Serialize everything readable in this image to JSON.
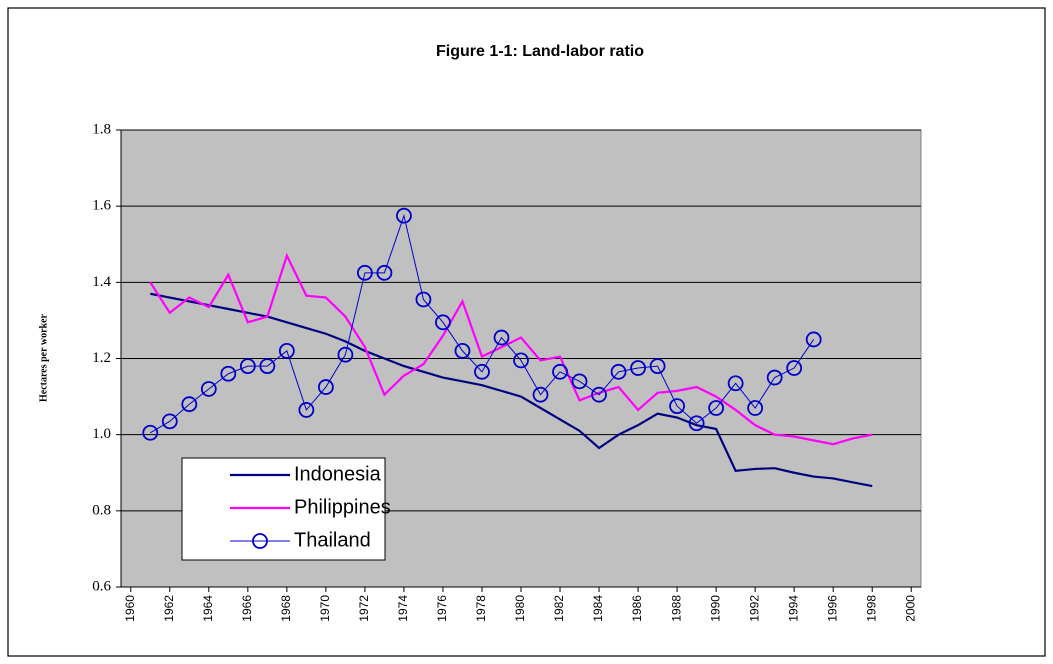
{
  "chart_data": {
    "type": "line",
    "title": "Figure 1-1: Land-labor ratio",
    "y_label": "Hectares per worker",
    "x": [
      1961,
      1962,
      1963,
      1964,
      1965,
      1966,
      1967,
      1968,
      1969,
      1970,
      1971,
      1972,
      1973,
      1974,
      1975,
      1976,
      1977,
      1978,
      1979,
      1980,
      1981,
      1982,
      1983,
      1984,
      1985,
      1986,
      1987,
      1988,
      1989,
      1990,
      1991,
      1992,
      1993,
      1994,
      1995,
      1996,
      1997,
      1998
    ],
    "series": [
      {
        "name": "Indonesia",
        "color": "#000080",
        "values": [
          1.37,
          1.36,
          1.35,
          1.34,
          1.33,
          1.32,
          1.31,
          1.295,
          1.28,
          1.265,
          1.245,
          1.22,
          1.2,
          1.18,
          1.165,
          1.15,
          1.14,
          1.13,
          1.115,
          1.1,
          1.07,
          1.04,
          1.01,
          0.965,
          1.0,
          1.025,
          1.055,
          1.045,
          1.025,
          1.015,
          0.905,
          0.91,
          0.912,
          0.9,
          0.89,
          0.885,
          0.875,
          0.865
        ]
      },
      {
        "name": "Philippines",
        "color": "#ff00ff",
        "values": [
          1.4,
          1.32,
          1.36,
          1.335,
          1.42,
          1.295,
          1.31,
          1.47,
          1.365,
          1.36,
          1.31,
          1.23,
          1.105,
          1.155,
          1.185,
          1.26,
          1.35,
          1.205,
          1.23,
          1.255,
          1.195,
          1.205,
          1.09,
          1.11,
          1.125,
          1.065,
          1.11,
          1.115,
          1.125,
          1.1,
          1.065,
          1.025,
          1.0,
          0.995,
          0.985,
          0.975,
          0.99,
          1.0
        ]
      },
      {
        "name": "Thailand",
        "color": "#0000cc",
        "marker": "circle",
        "values": [
          1.005,
          1.035,
          1.08,
          1.12,
          1.16,
          1.18,
          1.18,
          1.22,
          1.065,
          1.125,
          1.21,
          1.425,
          1.425,
          1.575,
          1.355,
          1.295,
          1.22,
          1.165,
          1.255,
          1.195,
          1.105,
          1.165,
          1.14,
          1.105,
          1.165,
          1.175,
          1.18,
          1.075,
          1.03,
          1.07,
          1.135,
          1.07,
          1.15,
          1.175,
          1.25,
          null,
          null,
          null
        ]
      }
    ],
    "xlim": [
      1959.5,
      2000.5
    ],
    "xticks": [
      1960,
      1962,
      1964,
      1966,
      1968,
      1970,
      1972,
      1974,
      1976,
      1978,
      1980,
      1982,
      1984,
      1986,
      1988,
      1990,
      1992,
      1994,
      1996,
      1998,
      2000
    ],
    "ylim": [
      0.6,
      1.8
    ],
    "yticks": [
      {
        "value": 0.6,
        "label": "0.6"
      },
      {
        "value": 0.8,
        "label": "0.8"
      },
      {
        "value": 1.0,
        "label": "1.0"
      },
      {
        "value": 1.2,
        "label": "1.2"
      },
      {
        "value": 1.4,
        "label": "1.4"
      },
      {
        "value": 1.6,
        "label": "1.6"
      },
      {
        "value": 1.8,
        "label": "1.8"
      }
    ],
    "grid": true,
    "plot_background": "#c0c0c0"
  }
}
